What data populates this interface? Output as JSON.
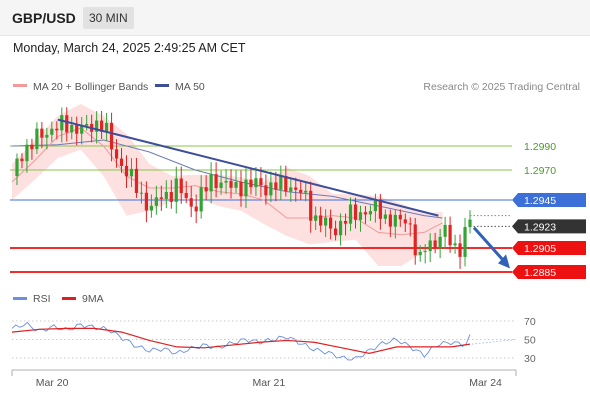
{
  "header": {
    "symbol": "GBP/USD",
    "timeframe": "30 MIN",
    "datetime": "Monday, March 24, 2025 2:49:25 AM CET"
  },
  "colors": {
    "ma20": "#f29a9a",
    "bollinger_fill": "#fcd8d8",
    "ma50": "#3d4f9a",
    "trendline": "#3d4f9a",
    "support": "#ee1111",
    "resistance_green": "#8bc34a",
    "blue_level": "#3d6fd8",
    "rsi": "#6a8fdc",
    "rsi_ma": "#e02020",
    "candle_up": "#33a336",
    "candle_down": "#e02424",
    "price_tag": "#333333",
    "arrow": "#2f62b8"
  },
  "legend_main": [
    {
      "label": "MA 20 + Bollinger Bands",
      "icon": "pink-line-icon"
    },
    {
      "label": "MA 50",
      "icon": "navy-line-icon"
    }
  ],
  "credit": "Research © 2025 Trading Central",
  "legend_rsi": [
    {
      "label": "RSI",
      "icon": "blue-line-icon"
    },
    {
      "label": "9MA",
      "icon": "red-line-icon"
    }
  ],
  "chart_data": {
    "type": "candlestick",
    "price_ylim": [
      1.2874,
      1.303
    ],
    "current_price": 1.2923,
    "levels": [
      {
        "value": 1.299,
        "label": "1.2990",
        "kind": "resistance-green"
      },
      {
        "value": 1.297,
        "label": "1.2970",
        "kind": "resistance-green"
      },
      {
        "value": 1.2945,
        "label": "1.2945",
        "kind": "pivot-blue"
      },
      {
        "value": 1.2905,
        "label": "1.2905",
        "kind": "support-red"
      },
      {
        "value": 1.2885,
        "label": "1.2885",
        "kind": "support-red"
      }
    ],
    "current_price_label": "1.2923",
    "trendline": {
      "from": [
        0.1,
        1.3012
      ],
      "to": [
        0.92,
        1.2932
      ]
    },
    "forecast_arrow": {
      "from": [
        0.925,
        1.2922
      ],
      "to": [
        1.0,
        1.2888
      ]
    },
    "ma20": [
      [
        0.0,
        1.296
      ],
      [
        0.05,
        1.2978
      ],
      [
        0.1,
        1.2998
      ],
      [
        0.15,
        1.3005
      ],
      [
        0.2,
        1.299
      ],
      [
        0.25,
        1.2965
      ],
      [
        0.3,
        1.2955
      ],
      [
        0.35,
        1.2955
      ],
      [
        0.4,
        1.2957
      ],
      [
        0.45,
        1.2952
      ],
      [
        0.5,
        1.295
      ],
      [
        0.55,
        1.2945
      ],
      [
        0.6,
        1.293
      ],
      [
        0.65,
        1.293
      ],
      [
        0.7,
        1.2932
      ],
      [
        0.75,
        1.293
      ],
      [
        0.8,
        1.2918
      ],
      [
        0.85,
        1.2916
      ],
      [
        0.9,
        1.2918
      ],
      [
        0.94,
        1.2926
      ]
    ],
    "ma50": [
      [
        0.0,
        1.299
      ],
      [
        0.1,
        1.2991
      ],
      [
        0.2,
        1.2995
      ],
      [
        0.3,
        1.2985
      ],
      [
        0.4,
        1.297
      ],
      [
        0.5,
        1.296
      ],
      [
        0.6,
        1.2952
      ],
      [
        0.7,
        1.2948
      ],
      [
        0.8,
        1.294
      ],
      [
        0.9,
        1.2932
      ],
      [
        0.94,
        1.293
      ]
    ],
    "bb_upper": [
      [
        0.0,
        1.2975
      ],
      [
        0.05,
        1.2995
      ],
      [
        0.1,
        1.3015
      ],
      [
        0.15,
        1.3025
      ],
      [
        0.2,
        1.3015
      ],
      [
        0.25,
        1.3
      ],
      [
        0.3,
        1.2975
      ],
      [
        0.35,
        1.2965
      ],
      [
        0.4,
        1.2966
      ],
      [
        0.45,
        1.2966
      ],
      [
        0.5,
        1.2964
      ],
      [
        0.55,
        1.296
      ],
      [
        0.6,
        1.2972
      ],
      [
        0.65,
        1.2965
      ],
      [
        0.7,
        1.295
      ],
      [
        0.75,
        1.295
      ],
      [
        0.8,
        1.2948
      ],
      [
        0.85,
        1.2942
      ],
      [
        0.9,
        1.2934
      ],
      [
        0.94,
        1.2935
      ]
    ],
    "bb_lower": [
      [
        0.0,
        1.2945
      ],
      [
        0.05,
        1.2962
      ],
      [
        0.1,
        1.298
      ],
      [
        0.15,
        1.2987
      ],
      [
        0.2,
        1.2965
      ],
      [
        0.25,
        1.2932
      ],
      [
        0.3,
        1.2936
      ],
      [
        0.35,
        1.2944
      ],
      [
        0.4,
        1.2948
      ],
      [
        0.45,
        1.294
      ],
      [
        0.5,
        1.2936
      ],
      [
        0.55,
        1.2925
      ],
      [
        0.6,
        1.2915
      ],
      [
        0.65,
        1.2908
      ],
      [
        0.7,
        1.291
      ],
      [
        0.75,
        1.2912
      ],
      [
        0.8,
        1.289
      ],
      [
        0.85,
        1.289
      ],
      [
        0.9,
        1.2902
      ],
      [
        0.94,
        1.2912
      ]
    ],
    "close_path": [
      [
        0.0,
        1.2965
      ],
      [
        0.02,
        1.2985
      ],
      [
        0.04,
        1.299
      ],
      [
        0.06,
        1.2998
      ],
      [
        0.08,
        1.3004
      ],
      [
        0.1,
        1.3005
      ],
      [
        0.12,
        1.3008
      ],
      [
        0.14,
        1.3005
      ],
      [
        0.16,
        1.3002
      ],
      [
        0.18,
        1.301
      ],
      [
        0.2,
        1.3008
      ],
      [
        0.22,
        1.2985
      ],
      [
        0.24,
        1.2975
      ],
      [
        0.26,
        1.2962
      ],
      [
        0.28,
        1.295
      ],
      [
        0.3,
        1.294
      ],
      [
        0.31,
        1.2935
      ],
      [
        0.32,
        1.2948
      ],
      [
        0.34,
        1.295
      ],
      [
        0.36,
        1.2956
      ],
      [
        0.38,
        1.2945
      ],
      [
        0.4,
        1.294
      ],
      [
        0.42,
        1.2952
      ],
      [
        0.44,
        1.2965
      ],
      [
        0.46,
        1.2958
      ],
      [
        0.48,
        1.2955
      ],
      [
        0.5,
        1.2958
      ],
      [
        0.52,
        1.2956
      ],
      [
        0.54,
        1.296
      ],
      [
        0.56,
        1.2954
      ],
      [
        0.58,
        1.2956
      ],
      [
        0.6,
        1.296
      ],
      [
        0.62,
        1.2952
      ],
      [
        0.64,
        1.2948
      ],
      [
        0.66,
        1.293
      ],
      [
        0.68,
        1.2925
      ],
      [
        0.7,
        1.292
      ],
      [
        0.72,
        1.2926
      ],
      [
        0.74,
        1.2932
      ],
      [
        0.76,
        1.2936
      ],
      [
        0.78,
        1.2934
      ],
      [
        0.8,
        1.294
      ],
      [
        0.81,
        1.2932
      ],
      [
        0.82,
        1.293
      ],
      [
        0.84,
        1.2925
      ],
      [
        0.86,
        1.293
      ],
      [
        0.87,
        1.2924
      ],
      [
        0.88,
        1.2905
      ],
      [
        0.89,
        1.289
      ],
      [
        0.9,
        1.2904
      ],
      [
        0.91,
        1.2912
      ],
      [
        0.92,
        1.2908
      ],
      [
        0.93,
        1.2912
      ],
      [
        0.94,
        1.2918
      ],
      [
        0.95,
        1.2915
      ],
      [
        0.96,
        1.291
      ],
      [
        0.97,
        1.2905
      ],
      [
        0.98,
        1.2906
      ],
      [
        0.99,
        1.2918
      ],
      [
        1.0,
        1.2926
      ]
    ],
    "rsi_ylim": [
      20,
      80
    ],
    "rsi_ticks": [
      70,
      50,
      30
    ],
    "rsi": [
      [
        0.0,
        62
      ],
      [
        0.03,
        67
      ],
      [
        0.06,
        59
      ],
      [
        0.09,
        64
      ],
      [
        0.12,
        60
      ],
      [
        0.15,
        66
      ],
      [
        0.18,
        63
      ],
      [
        0.21,
        61
      ],
      [
        0.24,
        52
      ],
      [
        0.27,
        43
      ],
      [
        0.3,
        38
      ],
      [
        0.33,
        40
      ],
      [
        0.36,
        35
      ],
      [
        0.39,
        40
      ],
      [
        0.42,
        44
      ],
      [
        0.45,
        41
      ],
      [
        0.48,
        46
      ],
      [
        0.51,
        50
      ],
      [
        0.54,
        47
      ],
      [
        0.57,
        50
      ],
      [
        0.6,
        53
      ],
      [
        0.63,
        46
      ],
      [
        0.66,
        39
      ],
      [
        0.69,
        36
      ],
      [
        0.72,
        30
      ],
      [
        0.75,
        29
      ],
      [
        0.78,
        38
      ],
      [
        0.81,
        46
      ],
      [
        0.84,
        50
      ],
      [
        0.87,
        42
      ],
      [
        0.9,
        33
      ],
      [
        0.93,
        45
      ],
      [
        0.96,
        47
      ],
      [
        0.99,
        44
      ],
      [
        1.0,
        53
      ]
    ],
    "rsi_ma": [
      [
        0.0,
        58
      ],
      [
        0.06,
        61
      ],
      [
        0.12,
        62
      ],
      [
        0.18,
        62
      ],
      [
        0.24,
        58
      ],
      [
        0.3,
        49
      ],
      [
        0.36,
        42
      ],
      [
        0.42,
        41
      ],
      [
        0.48,
        44
      ],
      [
        0.54,
        47
      ],
      [
        0.6,
        49
      ],
      [
        0.66,
        47
      ],
      [
        0.72,
        41
      ],
      [
        0.78,
        35
      ],
      [
        0.84,
        42
      ],
      [
        0.9,
        42
      ],
      [
        0.96,
        42
      ],
      [
        1.0,
        45
      ]
    ],
    "x_labels": [
      {
        "label": "Mar 20",
        "pos": 0.03
      },
      {
        "label": "Mar 21",
        "pos": 0.46
      },
      {
        "label": "Mar 24",
        "pos": 0.89
      }
    ]
  }
}
